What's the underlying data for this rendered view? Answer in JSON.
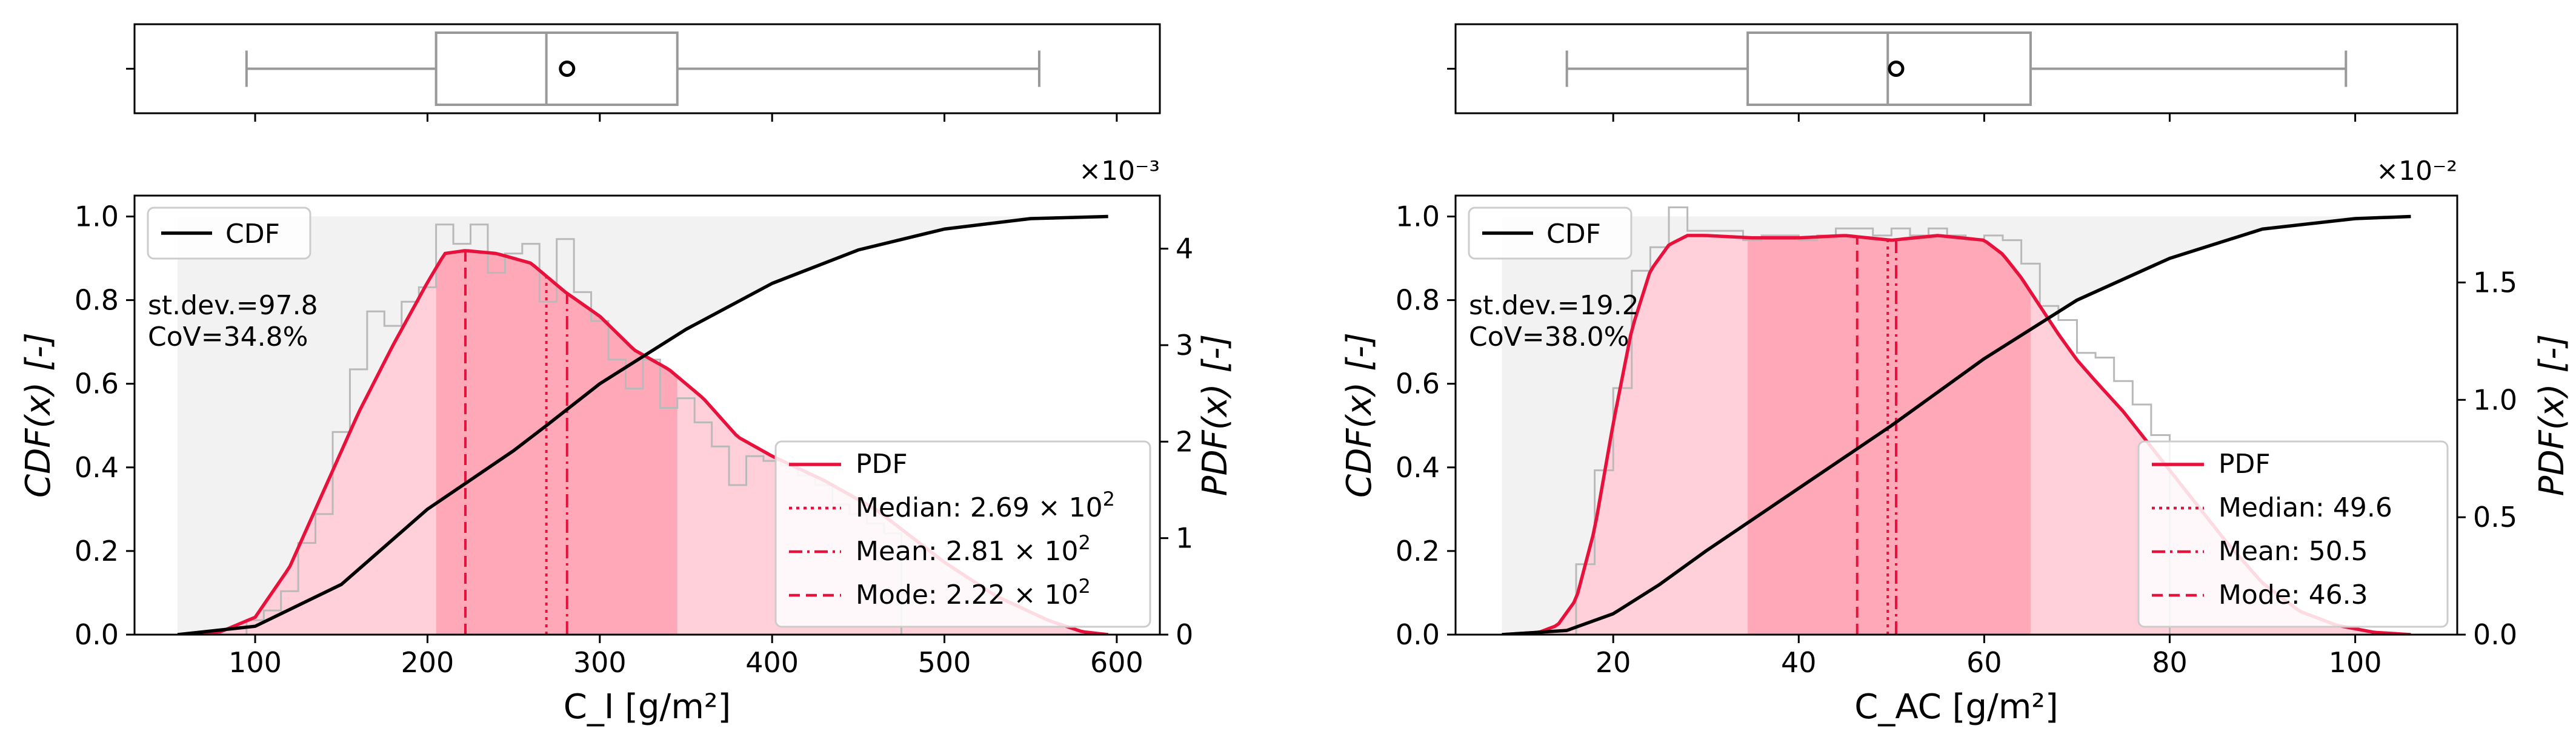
{
  "colors": {
    "pdf": "#e8113c",
    "fill_light": "#ffd0da",
    "fill_dark": "#ffa9b8",
    "cdf": "#000000",
    "cdf_fill": "#f2f2f2",
    "hist": "#b9b9b9",
    "box": "#999999"
  },
  "chart_data": [
    {
      "type": "histogram+kde+cdf+boxplot",
      "xlabel": "C_I [g/m²]",
      "ylabel_left": "CDF(x) [-]",
      "ylabel_right": "PDF(x) [-]",
      "xlim": [
        30,
        625
      ],
      "xticks": [
        100,
        200,
        300,
        400,
        500,
        600
      ],
      "ylim_cdf": [
        0,
        1.05
      ],
      "yticks_cdf": [
        0.0,
        0.2,
        0.4,
        0.6,
        0.8,
        1.0
      ],
      "pdf_scale": 0.001,
      "ylim_pdf_scaled": [
        0,
        4.55
      ],
      "yticks_pdf_scaled": [
        0,
        1,
        2,
        3,
        4
      ],
      "pdf_multiplier_label": "×10⁻³",
      "stats_text": [
        "st.dev.=97.8",
        "CoV=34.8%"
      ],
      "legend_cdf": "CDF",
      "legend": {
        "pdf": "PDF",
        "median_label": "Median: 2.69 × 10",
        "median_exp": "2",
        "mean_label": "Mean: 2.81 × 10",
        "mean_exp": "2",
        "mode_label": "Mode: 2.22 × 10",
        "mode_exp": "2"
      },
      "median": 269,
      "mean": 281,
      "mode": 222,
      "std": 97.8,
      "box": {
        "whisker_low": 95,
        "q1": 205,
        "median": 269,
        "q3": 345,
        "whisker_high": 555,
        "mean": 281
      },
      "band_outer": [
        55,
        595
      ],
      "band_inner": [
        205,
        345
      ],
      "pdf_curve_x": [
        55,
        80,
        100,
        120,
        140,
        160,
        180,
        200,
        210,
        222,
        240,
        260,
        280,
        300,
        320,
        340,
        360,
        380,
        400,
        430,
        460,
        500,
        530,
        560,
        580,
        595
      ],
      "pdf_curve_y": [
        0.0,
        0.03,
        0.18,
        0.7,
        1.5,
        2.3,
        3.0,
        3.65,
        3.95,
        3.98,
        3.95,
        3.85,
        3.55,
        3.3,
        2.95,
        2.75,
        2.45,
        2.05,
        1.85,
        1.6,
        1.3,
        0.75,
        0.4,
        0.15,
        0.03,
        0.0
      ],
      "cdf_curve_x": [
        55,
        100,
        150,
        200,
        250,
        269,
        300,
        350,
        400,
        450,
        500,
        550,
        595
      ],
      "cdf_curve_y": [
        0.0,
        0.02,
        0.12,
        0.3,
        0.44,
        0.5,
        0.6,
        0.73,
        0.84,
        0.92,
        0.97,
        0.995,
        1.0
      ],
      "hist_edges": [
        95,
        105,
        115,
        125,
        135,
        145,
        155,
        165,
        175,
        185,
        195,
        205,
        215,
        225,
        235,
        245,
        255,
        265,
        275,
        285,
        295,
        305,
        315,
        325,
        335,
        345,
        355,
        365,
        375,
        385,
        395,
        405,
        415,
        425,
        435,
        445,
        455,
        465,
        475
      ],
      "hist_values": [
        0.15,
        0.25,
        0.45,
        0.95,
        1.25,
        2.1,
        2.75,
        3.35,
        3.2,
        3.45,
        3.6,
        4.25,
        4.05,
        4.25,
        3.75,
        3.95,
        4.05,
        3.45,
        4.1,
        3.55,
        3.25,
        2.85,
        2.55,
        2.85,
        2.35,
        2.45,
        2.2,
        1.95,
        1.55,
        1.85,
        1.8,
        1.75,
        1.65,
        1.55,
        1.35,
        1.25,
        1.15,
        1.05
      ]
    },
    {
      "type": "histogram+kde+cdf+boxplot",
      "xlabel": "C_AC [g/m²]",
      "ylabel_left": "CDF(x) [-]",
      "ylabel_right": "PDF(x) [-]",
      "xlim": [
        3,
        111
      ],
      "xticks": [
        20,
        40,
        60,
        80,
        100
      ],
      "ylim_cdf": [
        0,
        1.05
      ],
      "yticks_cdf": [
        0.0,
        0.2,
        0.4,
        0.6,
        0.8,
        1.0
      ],
      "pdf_scale": 0.01,
      "ylim_pdf_scaled": [
        0,
        1.87
      ],
      "yticks_pdf_scaled": [
        0.0,
        0.5,
        1.0,
        1.5
      ],
      "pdf_multiplier_label": "×10⁻²",
      "stats_text": [
        "st.dev.=19.2",
        "CoV=38.0%"
      ],
      "legend_cdf": "CDF",
      "legend": {
        "pdf": "PDF",
        "median_label": "Median: 49.6",
        "median_exp": "",
        "mean_label": "Mean: 50.5",
        "mean_exp": "",
        "mode_label": "Mode: 46.3",
        "mode_exp": ""
      },
      "median": 49.6,
      "mean": 50.5,
      "mode": 46.3,
      "std": 19.2,
      "box": {
        "whisker_low": 15,
        "q1": 34.5,
        "median": 49.6,
        "q3": 65,
        "whisker_high": 99,
        "mean": 50.5
      },
      "band_outer": [
        8,
        106
      ],
      "band_inner": [
        34.5,
        65
      ],
      "pdf_curve_x": [
        8,
        12,
        14,
        16,
        18,
        20,
        22,
        24,
        26,
        28,
        30,
        35,
        40,
        45,
        50,
        55,
        60,
        62,
        64,
        66,
        68,
        70,
        72,
        75,
        78,
        82,
        86,
        90,
        94,
        98,
        102,
        106
      ],
      "pdf_curve_y": [
        0.0,
        0.01,
        0.04,
        0.15,
        0.45,
        0.9,
        1.3,
        1.55,
        1.66,
        1.7,
        1.7,
        1.69,
        1.69,
        1.7,
        1.68,
        1.7,
        1.68,
        1.62,
        1.52,
        1.4,
        1.28,
        1.17,
        1.08,
        0.95,
        0.8,
        0.6,
        0.4,
        0.22,
        0.1,
        0.04,
        0.01,
        0.0
      ],
      "cdf_curve_x": [
        8,
        15,
        20,
        25,
        30,
        40,
        50,
        60,
        70,
        80,
        90,
        100,
        106
      ],
      "cdf_curve_y": [
        0.0,
        0.01,
        0.05,
        0.12,
        0.2,
        0.35,
        0.5,
        0.66,
        0.8,
        0.9,
        0.97,
        0.995,
        1.0
      ],
      "hist_edges": [
        16,
        18,
        20,
        22,
        24,
        26,
        28,
        30,
        32,
        34,
        36,
        38,
        40,
        42,
        44,
        46,
        48,
        50,
        52,
        54,
        56,
        58,
        60,
        62,
        64,
        66,
        68,
        70,
        72,
        74,
        76,
        78,
        80
      ],
      "hist_values": [
        0.3,
        0.7,
        1.05,
        1.55,
        1.65,
        1.82,
        1.72,
        1.72,
        1.72,
        1.68,
        1.7,
        1.7,
        1.68,
        1.7,
        1.73,
        1.73,
        1.7,
        1.73,
        1.7,
        1.73,
        1.7,
        1.68,
        1.7,
        1.68,
        1.58,
        1.4,
        1.34,
        1.2,
        1.18,
        1.08,
        0.98,
        0.85
      ]
    }
  ]
}
